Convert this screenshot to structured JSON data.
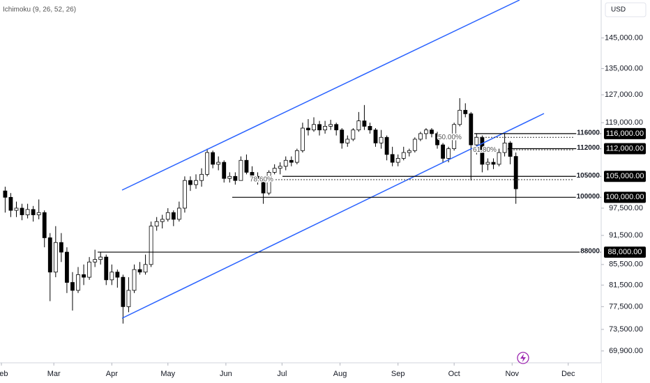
{
  "chart_data": {
    "type": "candlestick",
    "title": "Ichimoku (9, 26, 52, 26)",
    "currency": "USD",
    "log_scale": true,
    "ylim": [
      68100,
      158400
    ],
    "yticks": [
      {
        "value": 145000,
        "label": "145,000.00"
      },
      {
        "value": 135000,
        "label": "135,000.00"
      },
      {
        "value": 127000,
        "label": "127,000.00"
      },
      {
        "value": 119000,
        "label": "119,000.00"
      },
      {
        "value": 97500,
        "label": "97,500.00"
      },
      {
        "value": 91500,
        "label": "91,500.00"
      },
      {
        "value": 85500,
        "label": "85,500.00"
      },
      {
        "value": 81500,
        "label": "81,500.00"
      },
      {
        "value": 77500,
        "label": "77,500.00"
      },
      {
        "value": 73500,
        "label": "73,500.00"
      },
      {
        "value": 69900,
        "label": "69,900.00"
      }
    ],
    "xlim": [
      -0.92,
      106.2
    ],
    "xticks": [
      {
        "value": -0.67,
        "label": "Feb"
      },
      {
        "value": 8.67,
        "label": "Mar"
      },
      {
        "value": 19,
        "label": "Apr"
      },
      {
        "value": 29,
        "label": "May"
      },
      {
        "value": 39.33,
        "label": "Jun"
      },
      {
        "value": 49.33,
        "label": "Jul"
      },
      {
        "value": 59.67,
        "label": "Aug"
      },
      {
        "value": 70,
        "label": "Sep"
      },
      {
        "value": 80,
        "label": "Oct"
      },
      {
        "value": 90.33,
        "label": "Nov"
      },
      {
        "value": 100.33,
        "label": "Dec"
      }
    ],
    "up_color": "#ffffff",
    "down_color": "#000000",
    "ohlc": [
      [
        101500,
        102500,
        96500,
        100000
      ],
      [
        100000,
        101000,
        95500,
        97000
      ],
      [
        97000,
        99000,
        95500,
        97500
      ],
      [
        97500,
        98500,
        94800,
        96000
      ],
      [
        96000,
        98500,
        95200,
        97200
      ],
      [
        97200,
        98000,
        94500,
        96000
      ],
      [
        96000,
        99500,
        95000,
        96500
      ],
      [
        96500,
        97000,
        89000,
        91000
      ],
      [
        91000,
        92000,
        78500,
        84000
      ],
      [
        84000,
        93500,
        83000,
        90000
      ],
      [
        90000,
        92000,
        86000,
        88000
      ],
      [
        88000,
        89000,
        80000,
        82000
      ],
      [
        82000,
        84000,
        76800,
        80500
      ],
      [
        80500,
        85000,
        80000,
        83500
      ],
      [
        83500,
        85500,
        81500,
        83000
      ],
      [
        83000,
        87000,
        82500,
        86000
      ],
      [
        86000,
        88500,
        85000,
        86500
      ],
      [
        86500,
        88000,
        85500,
        87000
      ],
      [
        87000,
        87500,
        81500,
        82500
      ],
      [
        82500,
        85500,
        81500,
        84000
      ],
      [
        84000,
        84500,
        81000,
        83000
      ],
      [
        83000,
        83500,
        74500,
        77500
      ],
      [
        77500,
        83000,
        76500,
        80500
      ],
      [
        80500,
        85500,
        80000,
        84500
      ],
      [
        84500,
        86000,
        83500,
        84000
      ],
      [
        84000,
        87500,
        83500,
        85500
      ],
      [
        85500,
        94500,
        85000,
        93500
      ],
      [
        93500,
        95500,
        92500,
        94500
      ],
      [
        94500,
        96000,
        93000,
        95000
      ],
      [
        95000,
        97500,
        94500,
        96500
      ],
      [
        96500,
        97000,
        93500,
        95000
      ],
      [
        95000,
        99000,
        94500,
        97500
      ],
      [
        97500,
        105000,
        96500,
        104000
      ],
      [
        104000,
        105000,
        101500,
        103000
      ],
      [
        103000,
        105500,
        102000,
        104000
      ],
      [
        104000,
        107000,
        102500,
        105500
      ],
      [
        105500,
        112000,
        105000,
        111000
      ],
      [
        111000,
        111500,
        107000,
        108000
      ],
      [
        108000,
        110000,
        106500,
        108500
      ],
      [
        108500,
        109000,
        103500,
        104500
      ],
      [
        104500,
        106000,
        103500,
        105000
      ],
      [
        105000,
        106000,
        103000,
        104000
      ],
      [
        104000,
        110000,
        104000,
        109000
      ],
      [
        109000,
        110500,
        105500,
        106000
      ],
      [
        106000,
        107500,
        104500,
        105000
      ],
      [
        105000,
        106000,
        103000,
        104500
      ],
      [
        104500,
        105000,
        98500,
        101000
      ],
      [
        101000,
        106500,
        100500,
        106000
      ],
      [
        106000,
        108000,
        105500,
        107000
      ],
      [
        107000,
        108500,
        105500,
        107500
      ],
      [
        107500,
        110000,
        106500,
        109000
      ],
      [
        109000,
        110000,
        107500,
        108500
      ],
      [
        108500,
        112000,
        108000,
        111500
      ],
      [
        111500,
        119000,
        111000,
        117500
      ],
      [
        117500,
        120000,
        115500,
        117000
      ],
      [
        117000,
        120500,
        116500,
        118500
      ],
      [
        118500,
        119500,
        115500,
        117000
      ],
      [
        117000,
        119500,
        116000,
        118000
      ],
      [
        118000,
        119800,
        117000,
        118500
      ],
      [
        118500,
        119000,
        115500,
        117000
      ],
      [
        117000,
        117500,
        112000,
        113500
      ],
      [
        113500,
        115500,
        112500,
        114500
      ],
      [
        114500,
        117500,
        114000,
        117000
      ],
      [
        117000,
        122000,
        116500,
        119500
      ],
      [
        119500,
        124000,
        117000,
        118000
      ],
      [
        118000,
        119000,
        116000,
        117000
      ],
      [
        117000,
        117500,
        112500,
        113500
      ],
      [
        113500,
        117000,
        112000,
        115000
      ],
      [
        115000,
        115500,
        109000,
        110500
      ],
      [
        110500,
        112500,
        107500,
        108500
      ],
      [
        108500,
        110500,
        107500,
        109500
      ],
      [
        109500,
        112500,
        109000,
        111000
      ],
      [
        111000,
        112000,
        110000,
        111500
      ],
      [
        111500,
        115000,
        111000,
        114500
      ],
      [
        114500,
        116500,
        114000,
        116000
      ],
      [
        116000,
        117500,
        114500,
        117000
      ],
      [
        117000,
        117500,
        115000,
        116000
      ],
      [
        116000,
        116500,
        112000,
        113000
      ],
      [
        113000,
        113500,
        108500,
        109500
      ],
      [
        109500,
        112500,
        108500,
        112000
      ],
      [
        112000,
        119000,
        111500,
        118500
      ],
      [
        118500,
        126000,
        118000,
        122500
      ],
      [
        122500,
        124500,
        120500,
        121500
      ],
      [
        121500,
        122000,
        104000,
        113000
      ],
      [
        113000,
        116000,
        110500,
        115000
      ],
      [
        115000,
        115500,
        106000,
        108000
      ],
      [
        108000,
        109500,
        106500,
        108500
      ],
      [
        108500,
        109500,
        106800,
        108000
      ],
      [
        108000,
        112000,
        107500,
        111000
      ],
      [
        111000,
        116000,
        110000,
        113500
      ],
      [
        113500,
        114000,
        108000,
        110000
      ],
      [
        110000,
        111000,
        98500,
        102000
      ]
    ],
    "levels": [
      {
        "value": 116000,
        "label": "116000",
        "axis_label": "116,000.00"
      },
      {
        "value": 112000,
        "label": "112000",
        "axis_label": "112,000.00"
      },
      {
        "value": 105000,
        "label": "105000",
        "axis_label": "105,000.00"
      },
      {
        "value": 100000,
        "label": "100000",
        "axis_label": "100,000.00"
      },
      {
        "value": 88000,
        "label": "88000",
        "axis_label": "88,000.00"
      }
    ],
    "fib_levels": [
      {
        "value": 115000,
        "label": "50.00%"
      },
      {
        "value": 111700,
        "label": "61.80%"
      },
      {
        "value": 104200,
        "label": "78.60%"
      }
    ]
  }
}
